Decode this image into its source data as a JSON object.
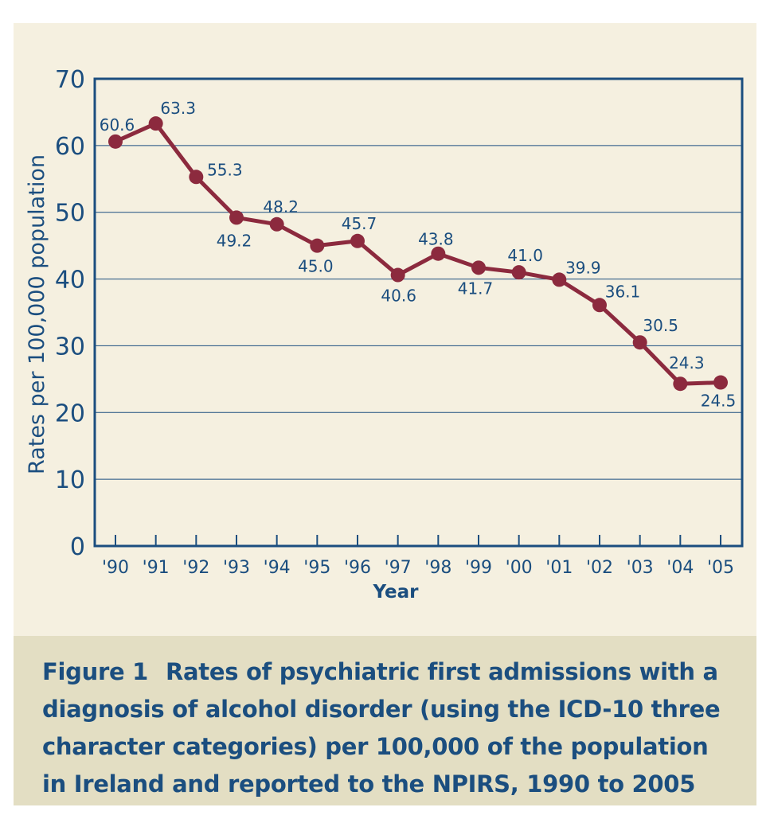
{
  "colors": {
    "background": "#f5f0e0",
    "caption_background": "#e3dec3",
    "axis": "#1b4e7f",
    "text": "#1b4e7f",
    "line": "#8c2a3e",
    "grid": "#1b4e7f"
  },
  "chart_data": {
    "type": "line",
    "title": "",
    "xlabel": "Year",
    "ylabel": "Rates per 100,000 population",
    "ylim": [
      0,
      70
    ],
    "yticks": [
      "0",
      "10",
      "20",
      "30",
      "40",
      "50",
      "60",
      "70"
    ],
    "grid": true,
    "categories": [
      "'90",
      "'91",
      "'92",
      "'93",
      "'94",
      "'95",
      "'96",
      "'97",
      "'98",
      "'99",
      "'00",
      "'01",
      "'02",
      "'03",
      "'04",
      "'05"
    ],
    "values": [
      60.6,
      63.3,
      55.3,
      49.2,
      48.2,
      45.0,
      45.7,
      40.6,
      43.8,
      41.7,
      41.0,
      39.9,
      36.1,
      30.5,
      24.3,
      24.5
    ],
    "data_labels": [
      "60.6",
      "63.3",
      "55.3",
      "49.2",
      "48.2",
      "45.0",
      "45.7",
      "40.6",
      "43.8",
      "41.7",
      "41.0",
      "39.9",
      "36.1",
      "30.5",
      "24.3",
      "24.5"
    ]
  },
  "caption": {
    "label": "Figure 1",
    "text": "Rates of psychiatric first admissions with a diagnosis of alcohol disorder (using the ICD-10 three character categories) per 100,000 of the population in Ireland and reported to the NPIRS, 1990 to 2005"
  }
}
